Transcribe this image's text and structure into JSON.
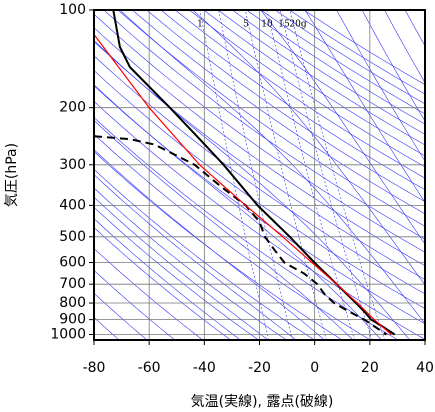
{
  "chart_data": {
    "type": "line",
    "x_label": "気温(実線), 露点(破線)",
    "y_label": "気圧(hPa)",
    "xlim": [
      -80,
      40
    ],
    "xticks": [
      -80,
      -60,
      -40,
      -20,
      0,
      20,
      40
    ],
    "ylim": [
      1040,
      100
    ],
    "yticks": [
      100,
      200,
      300,
      400,
      500,
      600,
      700,
      800,
      900,
      1000
    ],
    "log_y": true,
    "grid": true,
    "mixing_ratio_labels": [
      "1",
      "5",
      "10",
      "15",
      "20g"
    ],
    "series": [
      {
        "color": "#000000",
        "style": "solid",
        "x": [
          -73,
          -70.6,
          -67,
          -52.5,
          -41.7,
          -33,
          -20.7,
          -9,
          -0.1,
          8,
          15,
          18,
          20.5,
          25,
          29
        ],
        "y": [
          100,
          130,
          150,
          200,
          250,
          300,
          400,
          500,
          600,
          700,
          800,
          850,
          900,
          950,
          1000
        ]
      },
      {
        "color": "#000000",
        "style": "dashed",
        "x": [
          -80,
          -67,
          -58,
          -43.5,
          -34,
          -25,
          -20,
          -18,
          -14.5,
          -11,
          -3.7,
          1,
          3.5,
          7,
          12.5,
          18,
          26
        ],
        "y": [
          245,
          250,
          260,
          300,
          350,
          400,
          450,
          500,
          550,
          600,
          650,
          700,
          750,
          800,
          850,
          900,
          1000
        ]
      },
      {
        "color": "#ff0000",
        "style": "solid",
        "x": [
          -80,
          -60,
          -41.7,
          -25,
          -11.6,
          -1,
          8,
          15.5,
          21.6,
          27.8
        ],
        "y": [
          119,
          200,
          300,
          400,
          500,
          600,
          700,
          800,
          900,
          1000
        ]
      }
    ]
  }
}
